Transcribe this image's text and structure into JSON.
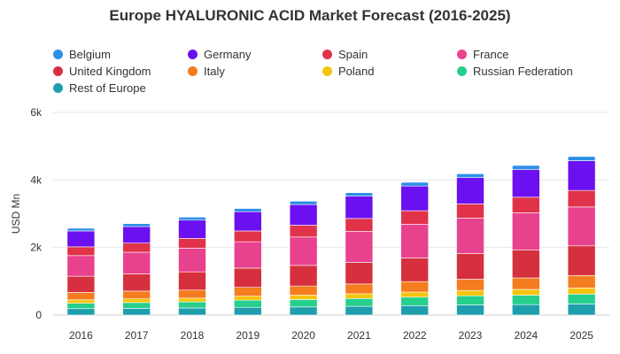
{
  "chart_data": {
    "type": "bar",
    "stacked": true,
    "title": "Europe HYALURONIC ACID Market Forecast (2016-2025)",
    "xlabel": "",
    "ylabel": "USD Mn",
    "ylim": [
      0,
      6000
    ],
    "yticks": [
      0,
      2000,
      4000,
      6000
    ],
    "ytick_labels": [
      "0",
      "2k",
      "4k",
      "6k"
    ],
    "grid": true,
    "legend_position": "top-left",
    "categories": [
      "2016",
      "2017",
      "2018",
      "2019",
      "2020",
      "2021",
      "2022",
      "2023",
      "2024",
      "2025"
    ],
    "series": [
      {
        "name": "Belgium",
        "color": "#2b8fe8",
        "values": [
          80,
          85,
          90,
          95,
          100,
          105,
          110,
          115,
          120,
          125
        ]
      },
      {
        "name": "Germany",
        "color": "#6b10f0",
        "values": [
          470,
          490,
          540,
          570,
          610,
          660,
          730,
          780,
          820,
          880
        ]
      },
      {
        "name": "Spain",
        "color": "#e0334a",
        "values": [
          260,
          270,
          290,
          320,
          350,
          380,
          400,
          420,
          460,
          490
        ]
      },
      {
        "name": "France",
        "color": "#e8418d",
        "values": [
          610,
          640,
          700,
          780,
          840,
          920,
          1000,
          1050,
          1100,
          1150
        ]
      },
      {
        "name": "United Kingdom",
        "color": "#d6303e",
        "values": [
          480,
          510,
          540,
          570,
          610,
          640,
          700,
          760,
          830,
          880
        ]
      },
      {
        "name": "Italy",
        "color": "#f57c1f",
        "values": [
          220,
          230,
          240,
          260,
          270,
          290,
          310,
          330,
          340,
          370
        ]
      },
      {
        "name": "Poland",
        "color": "#f6c40c",
        "values": [
          100,
          110,
          110,
          120,
          130,
          140,
          150,
          160,
          170,
          180
        ]
      },
      {
        "name": "Russian Federation",
        "color": "#26cf8c",
        "values": [
          160,
          170,
          180,
          210,
          220,
          230,
          250,
          270,
          280,
          290
        ]
      },
      {
        "name": "Rest of Europe",
        "color": "#1f9fae",
        "values": [
          190,
          200,
          210,
          230,
          240,
          260,
          280,
          300,
          310,
          330
        ]
      }
    ]
  }
}
